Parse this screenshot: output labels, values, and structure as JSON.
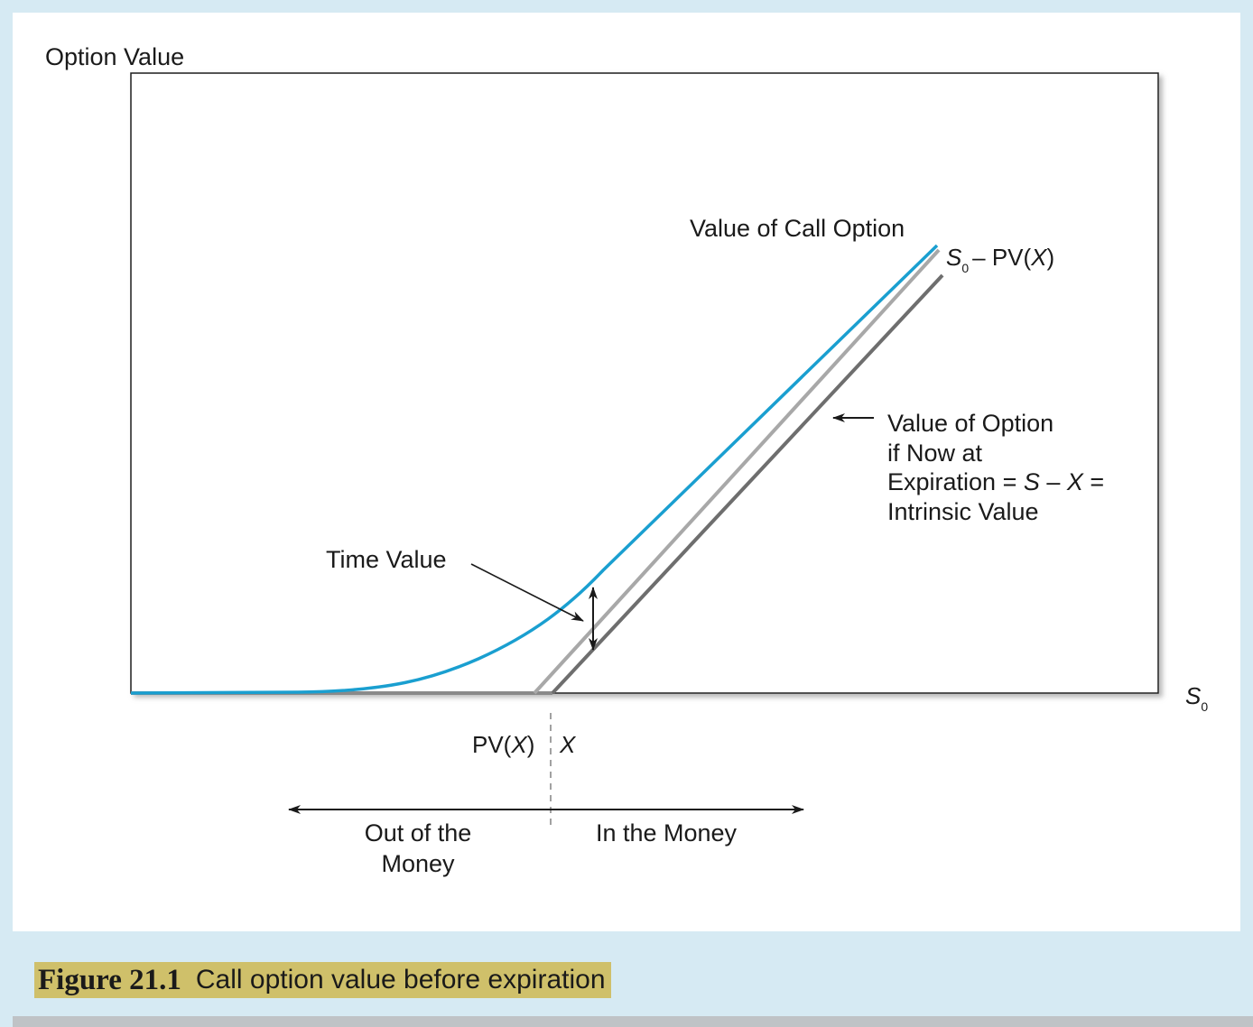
{
  "diagram": {
    "y_axis_label": "Option Value",
    "x_axis_label_main": "S",
    "x_axis_label_sub": "0",
    "labels": {
      "call_value": "Value of Call Option",
      "s0_pv_main": "S",
      "s0_pv_sub": "0",
      "s0_pv_rest": "– PV(",
      "s0_pv_x": "X",
      "s0_pv_close": ")",
      "intrinsic_line1": "Value of Option",
      "intrinsic_line2": "if Now at",
      "intrinsic_line3_prefix": "Expiration = ",
      "intrinsic_line3_s": "S",
      "intrinsic_line3_mid": " – ",
      "intrinsic_line3_x": "X",
      "intrinsic_line3_suffix": " =",
      "intrinsic_line4": "Intrinsic Value",
      "time_value": "Time Value",
      "pvx_prefix": "PV(",
      "pvx_x": "X",
      "pvx_close": ")",
      "x_tick": "X",
      "out_of_money_line1": "Out of the",
      "out_of_money_line2": "Money",
      "in_the_money": "In the Money"
    },
    "colors": {
      "call_curve": "#1a9fd0",
      "pv_line": "#a8a8a8",
      "intrinsic_line": "#6e6e6e",
      "caption_bg": "#cfc06a",
      "frame_bg": "#d6eaf3"
    }
  },
  "caption": {
    "figure_number": "Figure 21.1",
    "title": "Call option value before expiration"
  }
}
